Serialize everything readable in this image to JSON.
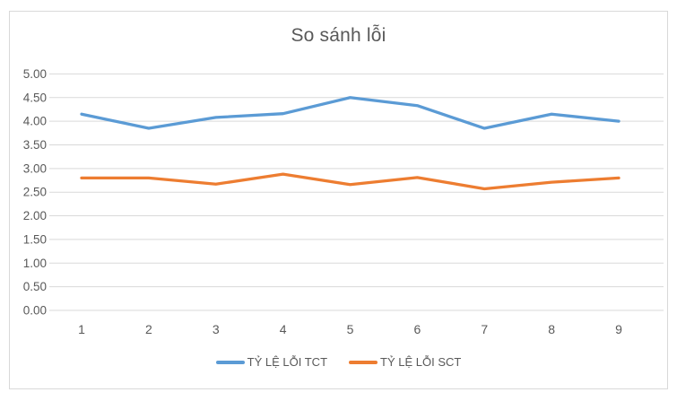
{
  "chart_data": {
    "type": "line",
    "title": "So sánh lỗi",
    "categories": [
      "1",
      "2",
      "3",
      "4",
      "5",
      "6",
      "7",
      "8",
      "9"
    ],
    "series": [
      {
        "name": "TỶ LỆ LỖI TCT",
        "color": "#5B9BD5",
        "values": [
          4.15,
          3.85,
          4.08,
          4.16,
          4.5,
          4.33,
          3.85,
          4.15,
          4.0
        ]
      },
      {
        "name": "TỶ LỆ LỖI SCT",
        "color": "#ED7D31",
        "values": [
          2.8,
          2.8,
          2.67,
          2.88,
          2.66,
          2.81,
          2.57,
          2.71,
          2.8
        ]
      }
    ],
    "y_ticks": [
      0,
      0.5,
      1,
      1.5,
      2,
      2.5,
      3,
      3.5,
      4,
      4.5,
      5
    ],
    "y_tick_labels": [
      "0.00",
      "0.50",
      "1.00",
      "1.50",
      "2.00",
      "2.50",
      "3.00",
      "3.50",
      "4.00",
      "4.50",
      "5.00"
    ],
    "xlabel": "",
    "ylabel": "",
    "ylim": [
      0,
      5
    ],
    "grid": true,
    "legend_position": "bottom",
    "text_color": "#595959",
    "grid_color": "#d9d9d9"
  }
}
